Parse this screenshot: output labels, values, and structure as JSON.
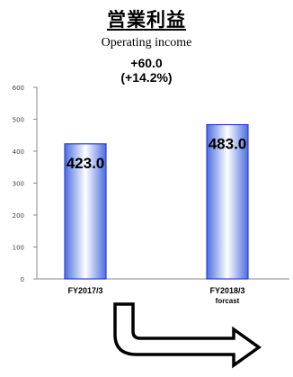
{
  "header": {
    "title_jp": "営業利益",
    "title_en": "Operating income",
    "change_value": "+60.0",
    "change_percent": "(+14.2%)"
  },
  "chart_data": {
    "type": "bar",
    "categories": [
      "FY2017/3",
      "FY2018/3"
    ],
    "category_sublabels": [
      "",
      "forcast"
    ],
    "values": [
      423.0,
      483.0
    ],
    "data_labels": [
      "423.0",
      "483.0"
    ],
    "ylim": [
      0,
      600
    ],
    "yticks": [
      0,
      100,
      200,
      300,
      400,
      500,
      600
    ],
    "grid": false,
    "bar_fill_edge": "#4a6ee0",
    "bar_fill_center": "#ffffff",
    "bar_border": "#2f3fd0"
  }
}
